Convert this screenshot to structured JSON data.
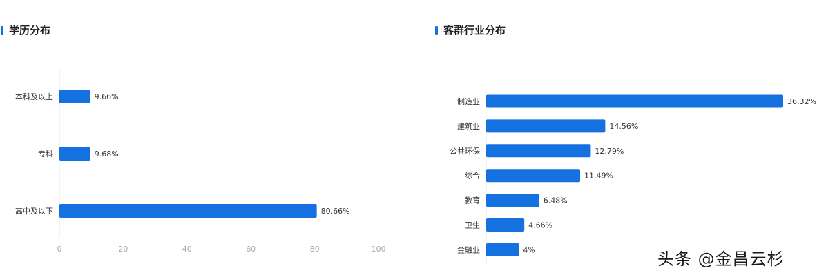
{
  "panels": {
    "left_title": "学历分布",
    "right_title": "客群行业分布"
  },
  "watermark": "头条 @金昌云杉",
  "colors": {
    "bar": "#1570e0",
    "accent": "#1570e0",
    "axis": "#e3e6ea",
    "tick": "#a3abb5"
  },
  "chart_data": [
    {
      "type": "bar",
      "orientation": "horizontal",
      "title": "学历分布",
      "categories": [
        "本科及以上",
        "专科",
        "高中及以下"
      ],
      "values": [
        9.66,
        9.68,
        80.66
      ],
      "labels": [
        "9.66%",
        "9.68%",
        "80.66%"
      ],
      "xlim": [
        0,
        100
      ],
      "xticks": [
        0,
        20,
        40,
        60,
        80,
        100
      ],
      "grid": false
    },
    {
      "type": "bar",
      "orientation": "horizontal",
      "title": "客群行业分布",
      "categories": [
        "制造业",
        "建筑业",
        "公共环保",
        "综合",
        "教育",
        "卫生",
        "金融业"
      ],
      "values": [
        36.32,
        14.56,
        12.79,
        11.49,
        6.48,
        4.66,
        4
      ],
      "labels": [
        "36.32%",
        "14.56%",
        "12.79%",
        "11.49%",
        "6.48%",
        "4.66%",
        "4%"
      ],
      "grid": false
    }
  ]
}
